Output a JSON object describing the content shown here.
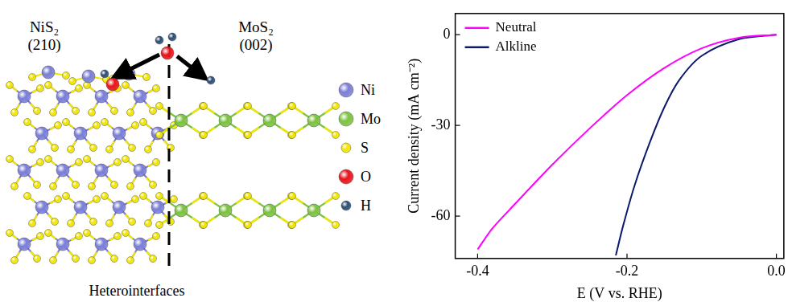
{
  "chart_data": {
    "type": "line",
    "xlabel": "E (V vs. RHE)",
    "ylabel": "Current density (mA cm⁻²)",
    "xlim": [
      -0.43,
      0.01
    ],
    "xticks": [
      -0.4,
      -0.2,
      {
        "value": 0,
        "label": "0.0"
      }
    ],
    "ylim": [
      -74,
      7
    ],
    "yticks": [
      -60,
      -30,
      0
    ],
    "grid": false,
    "legend": "upper left",
    "series": [
      {
        "name": "Neutral",
        "color": "#ff00ff",
        "x": [
          0,
          -0.05,
          -0.1,
          -0.15,
          -0.2,
          -0.25,
          -0.3,
          -0.35,
          -0.38,
          -0.4
        ],
        "values": [
          0,
          -1,
          -4.5,
          -11,
          -20,
          -31,
          -43,
          -56,
          -64,
          -71
        ]
      },
      {
        "name": "Alkline",
        "color": "#0d1a6b",
        "x": [
          0,
          -0.05,
          -0.1,
          -0.13,
          -0.15,
          -0.17,
          -0.19,
          -0.205,
          -0.215
        ],
        "values": [
          0,
          -1.5,
          -7,
          -15,
          -24,
          -36,
          -50,
          -63,
          -73
        ]
      }
    ]
  },
  "diagram": {
    "materials": [
      {
        "name": "NiS₂",
        "facet": "(210)"
      },
      {
        "name": "MoS₂",
        "facet": "(002)"
      }
    ],
    "atom_legend": [
      {
        "label": "Ni",
        "color": "#7b7fd6"
      },
      {
        "label": "Mo",
        "color": "#7cc242"
      },
      {
        "label": "S",
        "color": "#f2e600"
      },
      {
        "label": "O",
        "color": "#e8141c"
      },
      {
        "label": "H",
        "color": "#2d4f77"
      }
    ],
    "caption": "Heterointerfaces"
  }
}
